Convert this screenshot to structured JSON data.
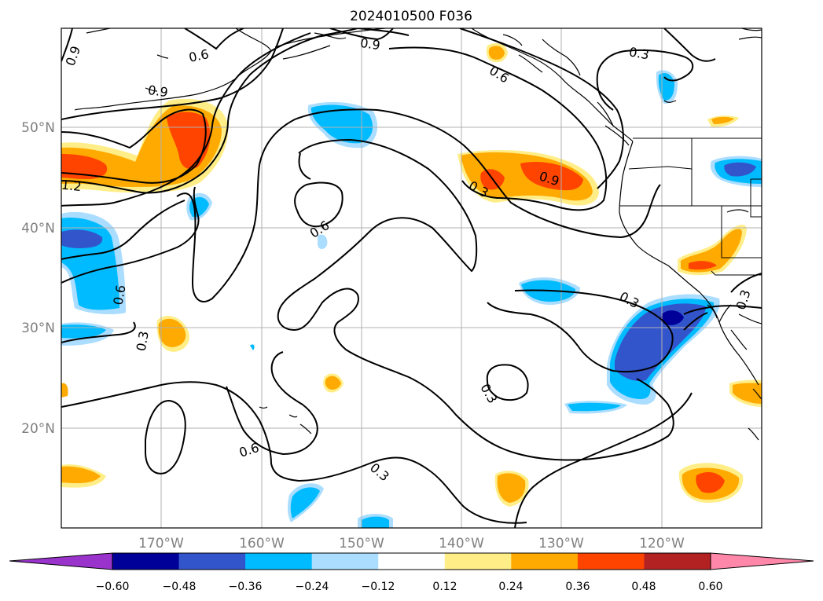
{
  "title": "2024010500 F036",
  "axes": {
    "lat_ticks": [
      "50°N",
      "40°N",
      "30°N",
      "20°N"
    ],
    "lon_ticks": [
      "170°W",
      "160°W",
      "150°W",
      "140°W",
      "130°W",
      "120°W"
    ]
  },
  "contour_labels": [
    "0.9",
    "0.6",
    "0.9",
    "1.2",
    "0.6",
    "0.6",
    "0.3",
    "0.9",
    "0.6",
    "0.3",
    "0.3",
    "0.6",
    "0.3",
    "0.3",
    "0.3",
    "0.3",
    "0.6",
    "0.9"
  ],
  "colorbar": {
    "ticks": [
      "−0.60",
      "−0.48",
      "−0.36",
      "−0.24",
      "−0.12",
      "0.12",
      "0.24",
      "0.36",
      "0.48",
      "0.60"
    ],
    "colors": [
      "#9933cc",
      "#000099",
      "#3355cc",
      "#00bbff",
      "#aaddff",
      "#ffffff",
      "#ffee88",
      "#ffaa00",
      "#ff4400",
      "#b22222",
      "#ff88aa"
    ]
  }
}
